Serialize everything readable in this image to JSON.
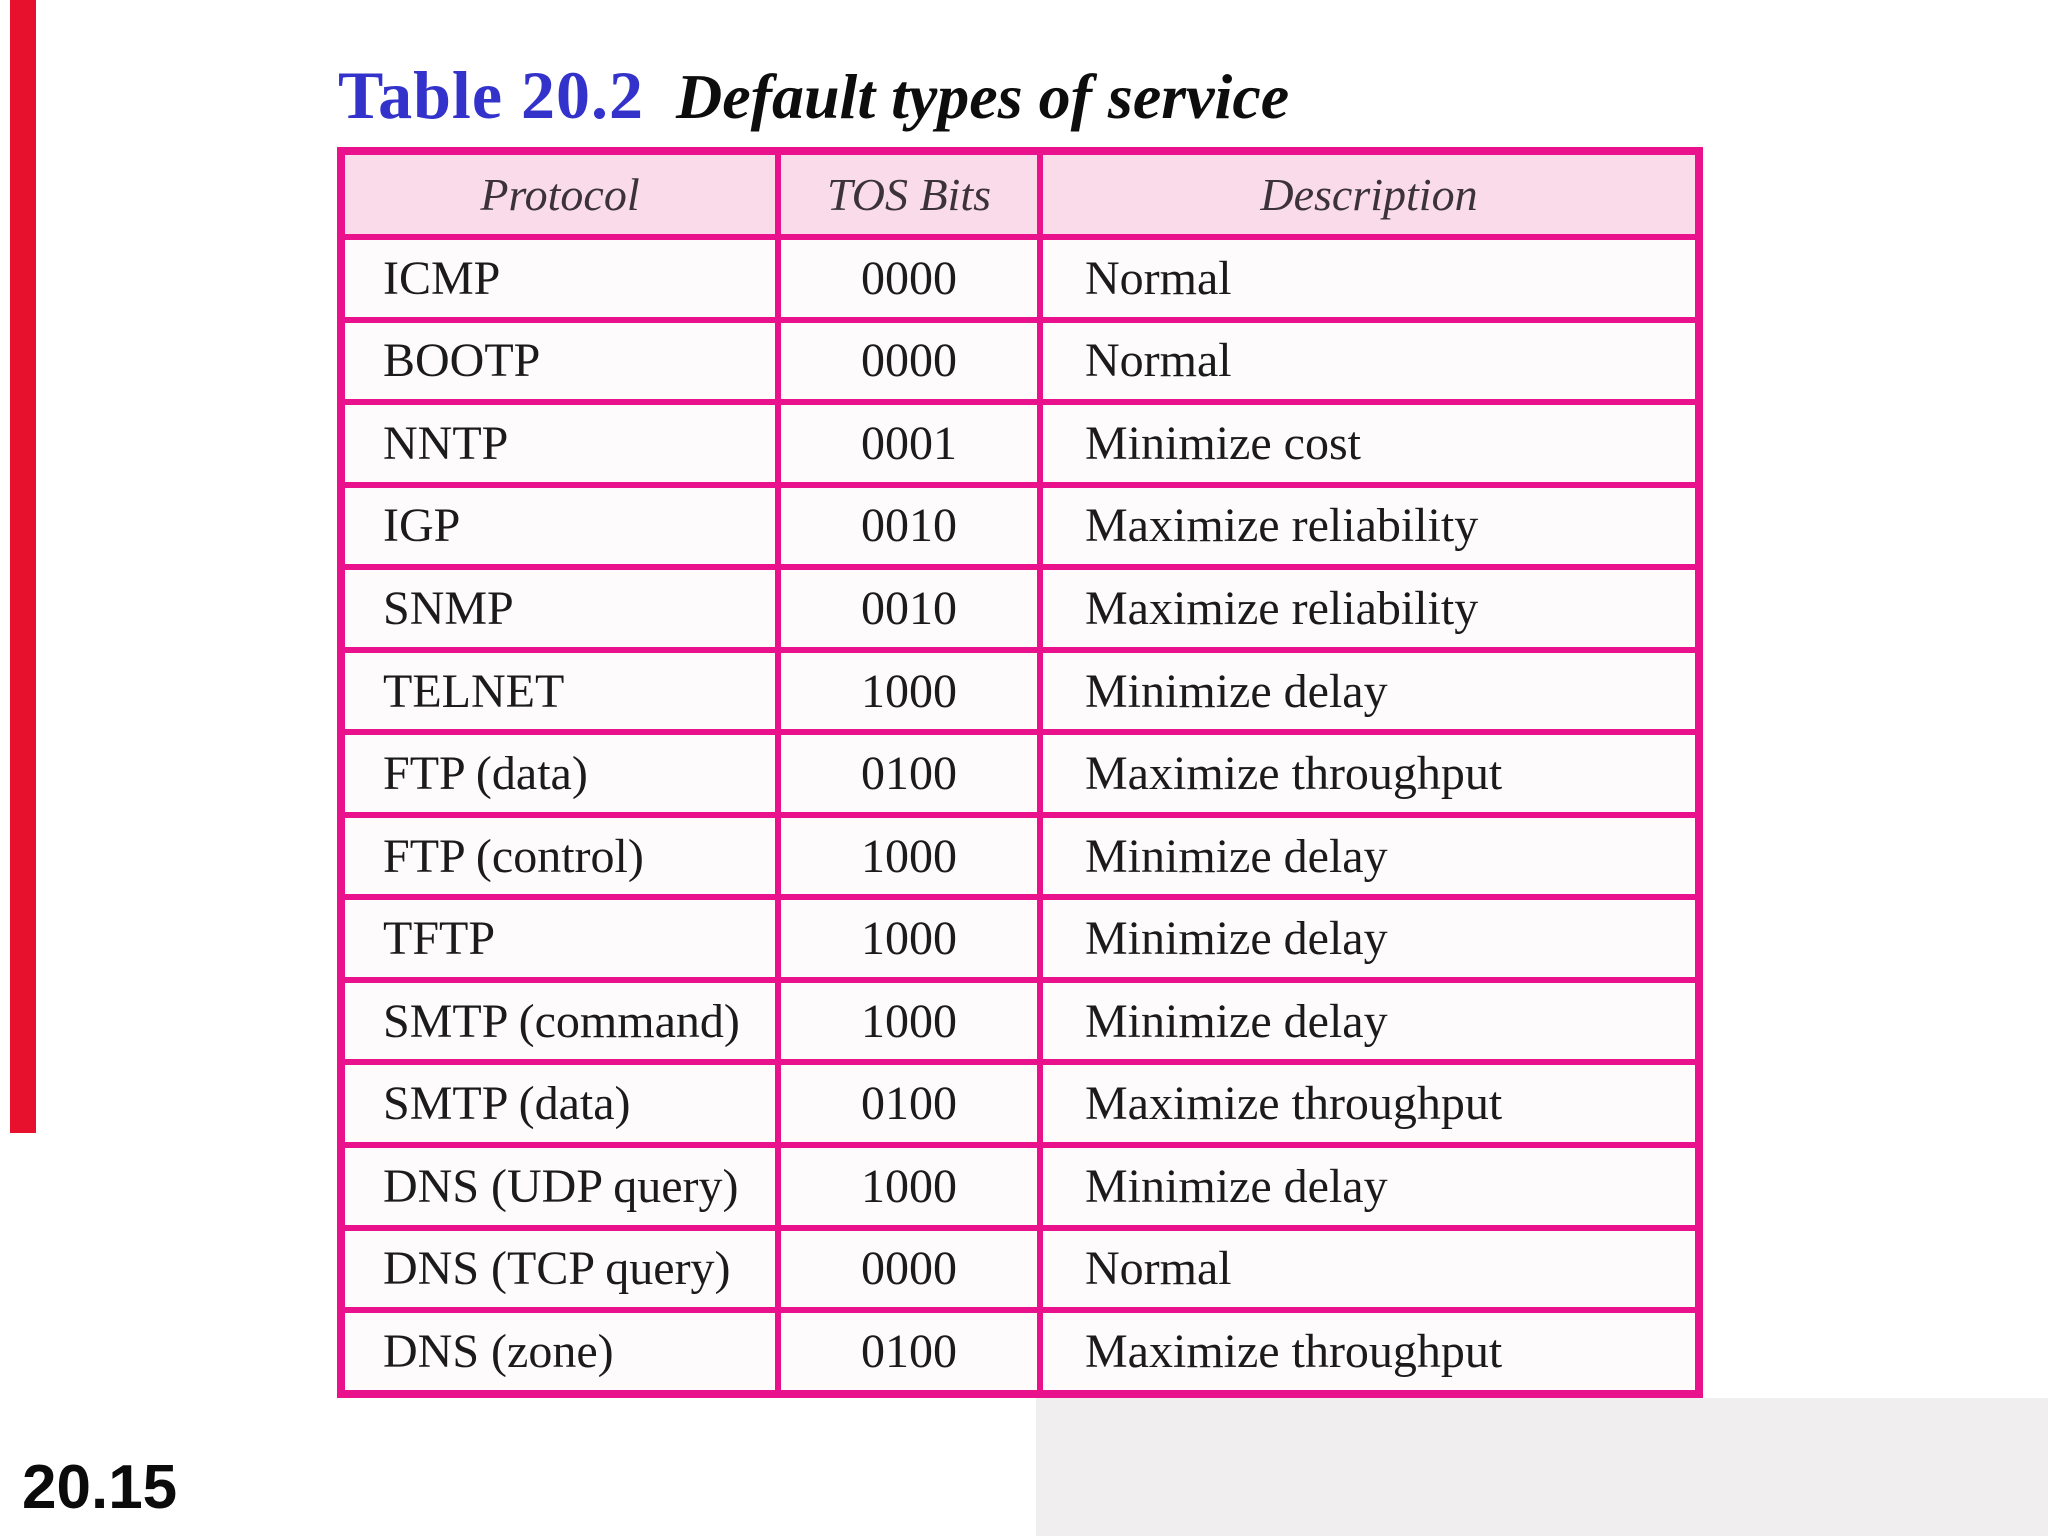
{
  "slide": {
    "title_label": "Table 20.2",
    "title_caption": "Default types of service",
    "page_number": "20.15"
  },
  "table": {
    "headers": [
      "Protocol",
      "TOS Bits",
      "Description"
    ],
    "rows": [
      {
        "protocol": "ICMP",
        "tos_bits": "0000",
        "description": "Normal"
      },
      {
        "protocol": "BOOTP",
        "tos_bits": "0000",
        "description": "Normal"
      },
      {
        "protocol": "NNTP",
        "tos_bits": "0001",
        "description": "Minimize cost"
      },
      {
        "protocol": "IGP",
        "tos_bits": "0010",
        "description": "Maximize reliability"
      },
      {
        "protocol": "SNMP",
        "tos_bits": "0010",
        "description": "Maximize reliability"
      },
      {
        "protocol": "TELNET",
        "tos_bits": "1000",
        "description": "Minimize delay"
      },
      {
        "protocol": "FTP (data)",
        "tos_bits": "0100",
        "description": "Maximize throughput"
      },
      {
        "protocol": "FTP (control)",
        "tos_bits": "1000",
        "description": "Minimize delay"
      },
      {
        "protocol": "TFTP",
        "tos_bits": "1000",
        "description": "Minimize delay"
      },
      {
        "protocol": "SMTP (command)",
        "tos_bits": "1000",
        "description": "Minimize delay"
      },
      {
        "protocol": "SMTP (data)",
        "tos_bits": "0100",
        "description": "Maximize throughput"
      },
      {
        "protocol": "DNS (UDP query)",
        "tos_bits": "1000",
        "description": "Minimize delay"
      },
      {
        "protocol": "DNS (TCP query)",
        "tos_bits": "0000",
        "description": "Normal"
      },
      {
        "protocol": "DNS (zone)",
        "tos_bits": "0100",
        "description": "Maximize throughput"
      }
    ]
  },
  "colors": {
    "title_blue": "#3333cc",
    "table_border": "#ea128c",
    "header_background": "#fadbe9",
    "cell_background": "#fdfbfb",
    "accent_bar_red": "#e8112d",
    "bottom_right_shade": "#f0eeee",
    "text": "#1b1b1b"
  }
}
